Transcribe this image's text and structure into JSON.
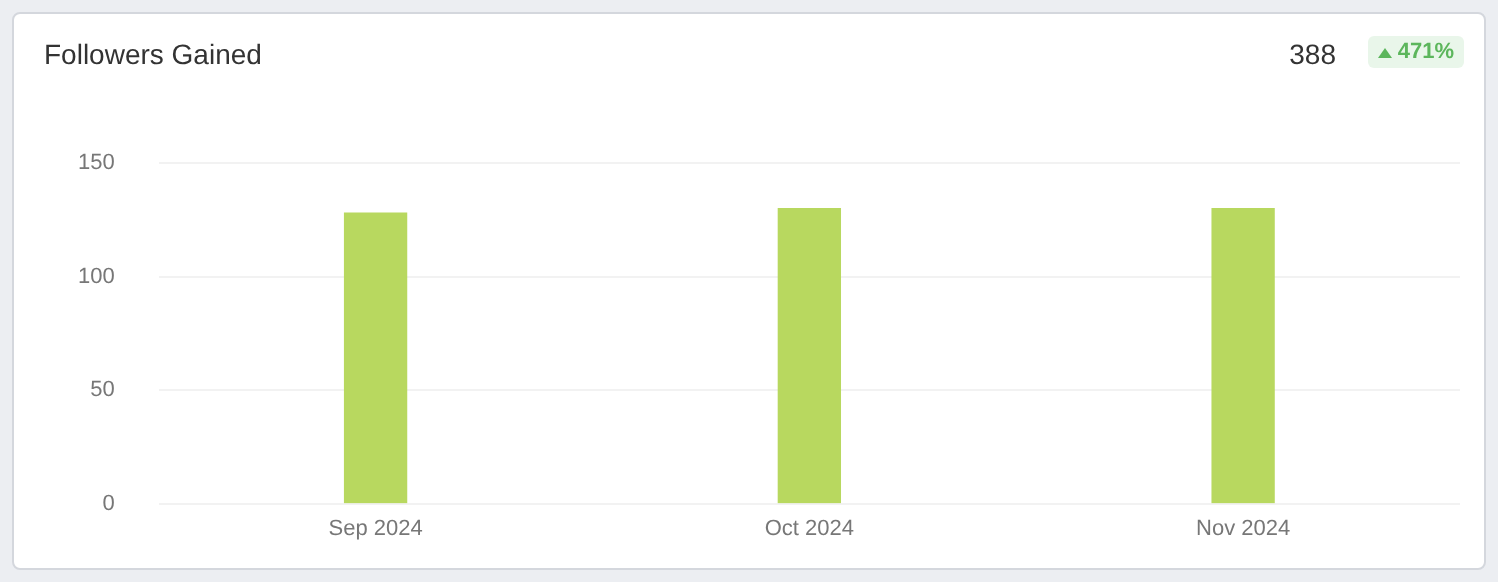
{
  "chart_data": {
    "type": "bar",
    "title": "Followers Gained",
    "annotations": [
      "388",
      "471%"
    ],
    "categories": [
      "Sep 2024",
      "Oct 2024",
      "Nov 2024"
    ],
    "values": [
      128,
      130,
      130
    ],
    "color": "#b8d85f",
    "ylim": [
      0,
      150
    ],
    "yticks": [
      0,
      50,
      100,
      150
    ],
    "grid": "y"
  }
}
